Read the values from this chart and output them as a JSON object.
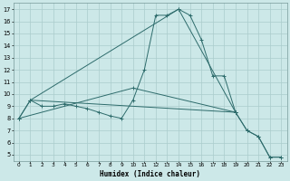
{
  "xlabel": "Humidex (Indice chaleur)",
  "bg_color": "#cce8e8",
  "grid_color": "#aacccc",
  "line_color": "#2d6b6b",
  "xlim": [
    -0.5,
    23.5
  ],
  "ylim": [
    4.5,
    17.5
  ],
  "xticks": [
    0,
    1,
    2,
    3,
    4,
    5,
    6,
    7,
    8,
    9,
    10,
    11,
    12,
    13,
    14,
    15,
    16,
    17,
    18,
    19,
    20,
    21,
    22,
    23
  ],
  "yticks": [
    5,
    6,
    7,
    8,
    9,
    10,
    11,
    12,
    13,
    14,
    15,
    16,
    17
  ],
  "line1": [
    [
      0,
      8.0
    ],
    [
      1,
      9.5
    ],
    [
      2,
      9.0
    ],
    [
      3,
      9.0
    ],
    [
      4,
      9.2
    ],
    [
      5,
      9.0
    ],
    [
      6,
      8.8
    ],
    [
      7,
      8.5
    ],
    [
      8,
      8.2
    ],
    [
      9,
      8.0
    ],
    [
      10,
      9.5
    ],
    [
      11,
      12.0
    ],
    [
      12,
      16.5
    ],
    [
      13,
      16.5
    ],
    [
      14,
      17.0
    ],
    [
      15,
      16.5
    ],
    [
      16,
      14.5
    ],
    [
      17,
      11.5
    ],
    [
      18,
      11.5
    ],
    [
      19,
      8.5
    ],
    [
      20,
      7.0
    ],
    [
      21,
      6.5
    ],
    [
      22,
      4.8
    ],
    [
      23,
      4.8
    ]
  ],
  "line2": [
    [
      0,
      8.0
    ],
    [
      1,
      9.5
    ],
    [
      19,
      8.5
    ],
    [
      20,
      7.0
    ],
    [
      21,
      6.5
    ],
    [
      22,
      4.8
    ],
    [
      23,
      4.8
    ]
  ],
  "line3": [
    [
      0,
      8.0
    ],
    [
      10,
      10.5
    ],
    [
      19,
      8.5
    ]
  ],
  "line4": [
    [
      1,
      9.5
    ],
    [
      14,
      17.0
    ],
    [
      19,
      8.5
    ]
  ]
}
